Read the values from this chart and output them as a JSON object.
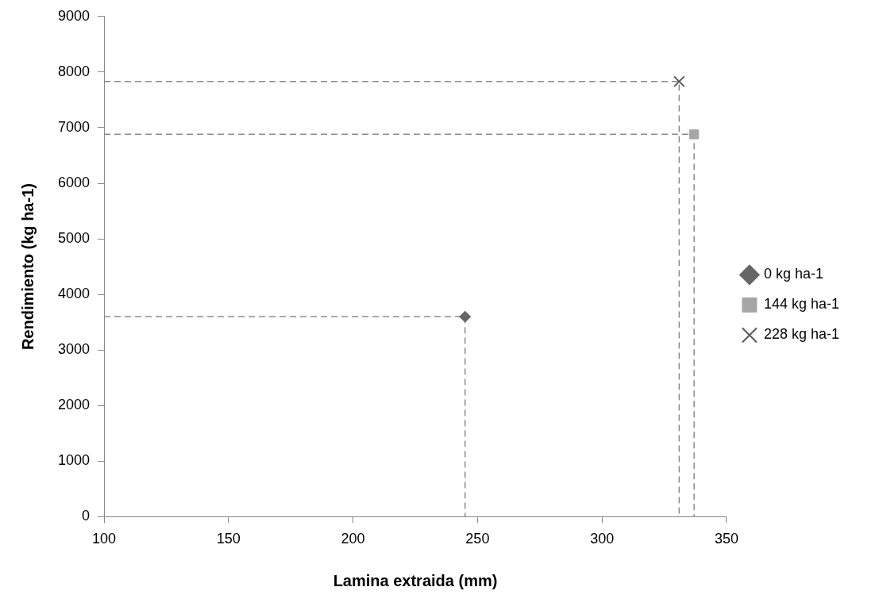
{
  "chart_data": {
    "type": "scatter",
    "xlabel": "Lamina extraida (mm)",
    "ylabel": "Rendimiento (kg ha-1)",
    "xlim": [
      100,
      350
    ],
    "xticks": [
      100,
      150,
      200,
      250,
      300,
      350
    ],
    "ylim": [
      0,
      9000
    ],
    "yticks": [
      0,
      1000,
      2000,
      3000,
      4000,
      5000,
      6000,
      7000,
      8000,
      9000
    ],
    "grid": false,
    "legend": "right",
    "series": [
      {
        "name": "0 kg ha-1",
        "color": "#666666",
        "marker": "diamond",
        "x": [
          245
        ],
        "values": [
          3600
        ]
      },
      {
        "name": "144 kg ha-1",
        "color": "#a6a6a6",
        "marker": "square",
        "x": [
          337
        ],
        "values": [
          6880
        ]
      },
      {
        "name": "228 kg ha-1",
        "color": "#595959",
        "marker": "cross",
        "x": [
          331
        ],
        "values": [
          7830
        ]
      },
      {
        "type": "line",
        "color": "#8c8c8c",
        "marker": "none",
        "line_style": "dashed",
        "x": [
          100,
          245,
          245
        ],
        "values": [
          3600,
          3600,
          0
        ]
      },
      {
        "type": "line",
        "color": "#8c8c8c",
        "marker": "none",
        "line_style": "dashed",
        "x": [
          100,
          337,
          337
        ],
        "values": [
          6880,
          6880,
          0
        ]
      },
      {
        "type": "line",
        "color": "#8c8c8c",
        "marker": "none",
        "line_style": "dashed",
        "x": [
          100,
          331,
          331
        ],
        "values": [
          7830,
          7830,
          0
        ]
      }
    ]
  }
}
